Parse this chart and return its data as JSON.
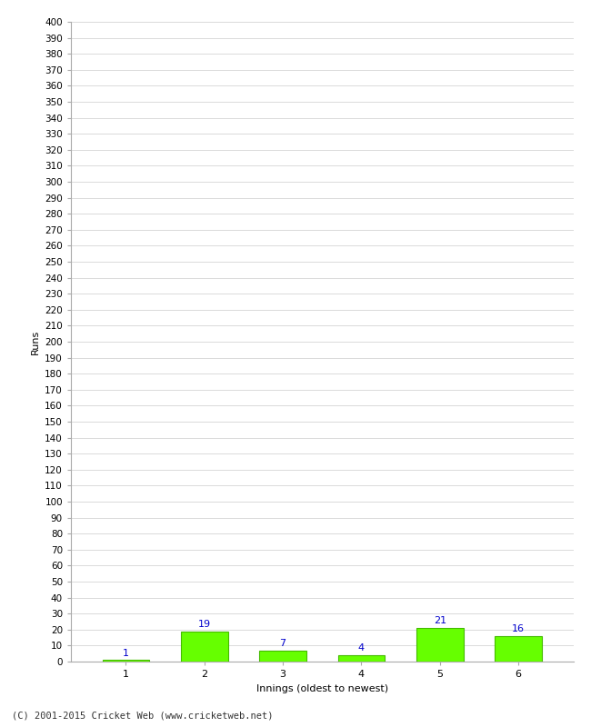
{
  "categories": [
    "1",
    "2",
    "3",
    "4",
    "5",
    "6"
  ],
  "values": [
    1,
    19,
    7,
    4,
    21,
    16
  ],
  "bar_color": "#66ff00",
  "bar_edge_color": "#44bb00",
  "xlabel": "Innings (oldest to newest)",
  "ylabel": "Runs",
  "ylim": [
    0,
    400
  ],
  "ytick_step": 10,
  "label_color": "#0000cc",
  "footer": "(C) 2001-2015 Cricket Web (www.cricketweb.net)",
  "background_color": "#ffffff",
  "grid_color": "#cccccc",
  "spine_color": "#aaaaaa"
}
